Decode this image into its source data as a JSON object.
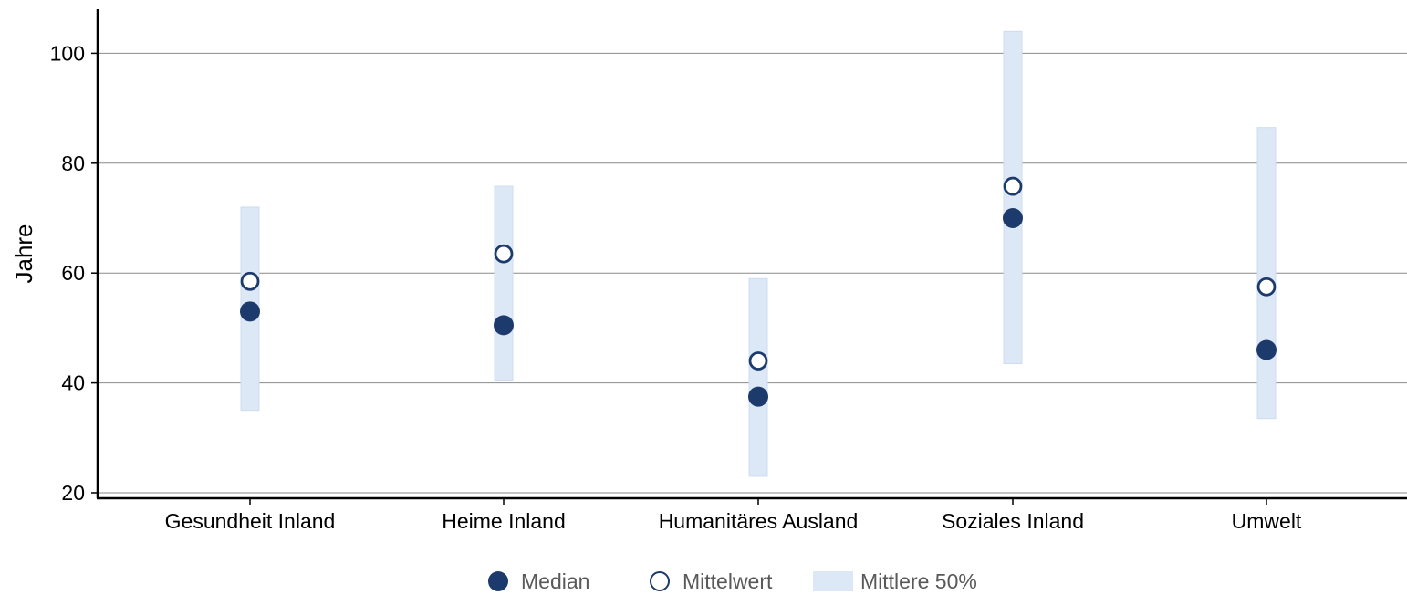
{
  "chart_data": {
    "type": "scatter",
    "title": "",
    "xlabel": "",
    "ylabel": "Jahre",
    "ylim": [
      20,
      105
    ],
    "yticks": [
      20,
      40,
      60,
      80,
      100
    ],
    "grid": true,
    "legend_position": "bottom",
    "categories": [
      "Gesundheit Inland",
      "Heime Inland",
      "Humanitäres Ausland",
      "Soziales Inland",
      "Umwelt"
    ],
    "series": [
      {
        "name": "Median",
        "marker": "filled-circle",
        "values": [
          53,
          50.5,
          37.5,
          70,
          46
        ]
      },
      {
        "name": "Mittelwert",
        "marker": "open-circle",
        "values": [
          58.5,
          63.5,
          44,
          75.8,
          57.5
        ]
      },
      {
        "name": "Mittlere 50%",
        "marker": "range-bar",
        "ranges": [
          [
            35,
            72
          ],
          [
            40.5,
            75.8
          ],
          [
            23,
            59
          ],
          [
            43.5,
            104
          ],
          [
            33.5,
            86.5
          ]
        ]
      }
    ],
    "colors": {
      "median": "#1c3a6b",
      "mean": "#1c3a6b",
      "range": "#dde8f7",
      "grid": "#8a8a8a",
      "axis": "#000000"
    }
  }
}
